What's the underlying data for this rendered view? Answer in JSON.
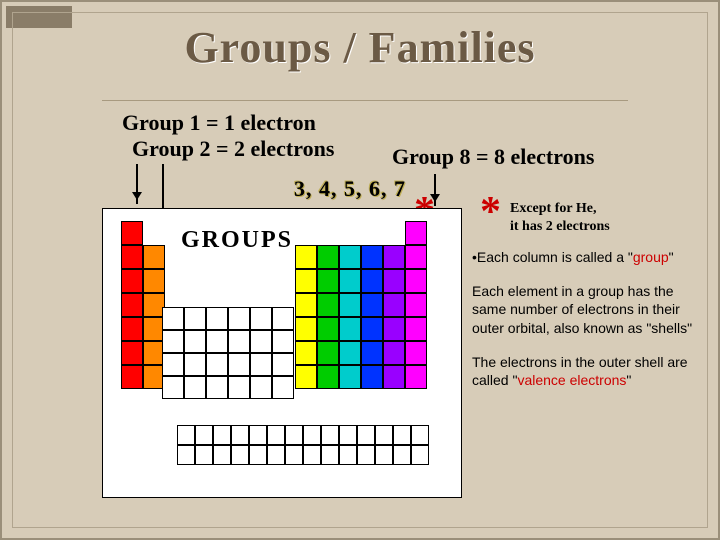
{
  "title": "Groups / Families",
  "labels": {
    "g1": "Group 1 = 1 electron",
    "g2": "Group 2 = 2 electrons",
    "g8": "Group 8 = 8 electrons",
    "middle": "3, 4, 5, 6, 7",
    "except_line1": "Except for He,",
    "except_line2": "it has 2 electrons",
    "groups_word": "GROUPS"
  },
  "bullets": {
    "b1_pre": "•Each column is called a \"",
    "b1_red": "group",
    "b1_post": "\"",
    "b2": "Each element in a group has the same number of electrons in their outer orbital, also known as \"shells\"",
    "b3_pre": "The electrons in the outer shell are called \"",
    "b3_red": "valence electrons",
    "b3_post": "\""
  },
  "chart": {
    "type": "periodic-table-groups",
    "col_colors": [
      "#ff0000",
      "#ff8800",
      "#ffff00",
      "#00cc00",
      "#00cccc",
      "#0033ff",
      "#9900ff",
      "#ff00ff"
    ],
    "background": "#ffffff",
    "border": "#000000",
    "main_group_rows": {
      "col1": [
        1,
        2,
        3,
        4,
        5,
        6,
        7
      ],
      "col2": [
        2,
        3,
        4,
        5,
        6,
        7
      ],
      "col3": [
        2,
        3,
        4,
        5,
        6,
        7
      ],
      "col4": [
        2,
        3,
        4,
        5,
        6,
        7
      ],
      "col5": [
        2,
        3,
        4,
        5,
        6,
        7
      ],
      "col6": [
        2,
        3,
        4,
        5,
        6,
        7
      ],
      "col7": [
        2,
        3,
        4,
        5,
        6,
        7
      ],
      "col8": [
        1,
        2,
        3,
        4,
        5,
        6,
        7
      ]
    },
    "transition_block": {
      "cols": 6,
      "rows": 4
    },
    "f_block": {
      "cols": 14,
      "rows": 2
    }
  },
  "colors": {
    "slide_bg": "#d7ccb8",
    "title_color": "#6b5a45",
    "accent_red": "#cc0000"
  }
}
